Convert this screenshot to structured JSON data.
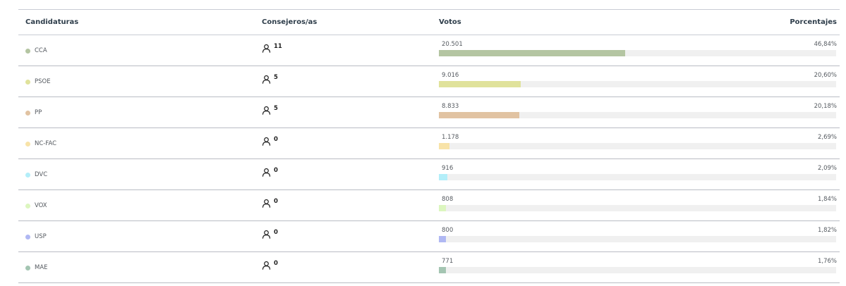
{
  "header": {
    "candidaturas": "Candidaturas",
    "consejeros": "Consejeros/as",
    "votos": "Votos",
    "porcentajes": "Porcentajes"
  },
  "icons": {
    "seats": "person-icon"
  },
  "rows": [
    {
      "party": "CCA",
      "color": "#b4c5a2",
      "seats": "11",
      "votes": "20.501",
      "percent": "46,84%",
      "share": 46.84
    },
    {
      "party": "PSOE",
      "color": "#e0e29b",
      "seats": "5",
      "votes": "9.016",
      "percent": "20,60%",
      "share": 20.6
    },
    {
      "party": "PP",
      "color": "#e1c3a2",
      "seats": "5",
      "votes": "8.833",
      "percent": "20,18%",
      "share": 20.18
    },
    {
      "party": "NC-FAC",
      "color": "#f8e3a8",
      "seats": "0",
      "votes": "1.178",
      "percent": "2,69%",
      "share": 2.69
    },
    {
      "party": "DVC",
      "color": "#b3eef9",
      "seats": "0",
      "votes": "916",
      "percent": "2,09%",
      "share": 2.09
    },
    {
      "party": "VOX",
      "color": "#dcf6bf",
      "seats": "0",
      "votes": "808",
      "percent": "1,84%",
      "share": 1.84
    },
    {
      "party": "USP",
      "color": "#b0b8f3",
      "seats": "0",
      "votes": "800",
      "percent": "1,82%",
      "share": 1.82
    },
    {
      "party": "MAE",
      "color": "#a4c5b2",
      "seats": "0",
      "votes": "771",
      "percent": "1,76%",
      "share": 1.76
    }
  ]
}
